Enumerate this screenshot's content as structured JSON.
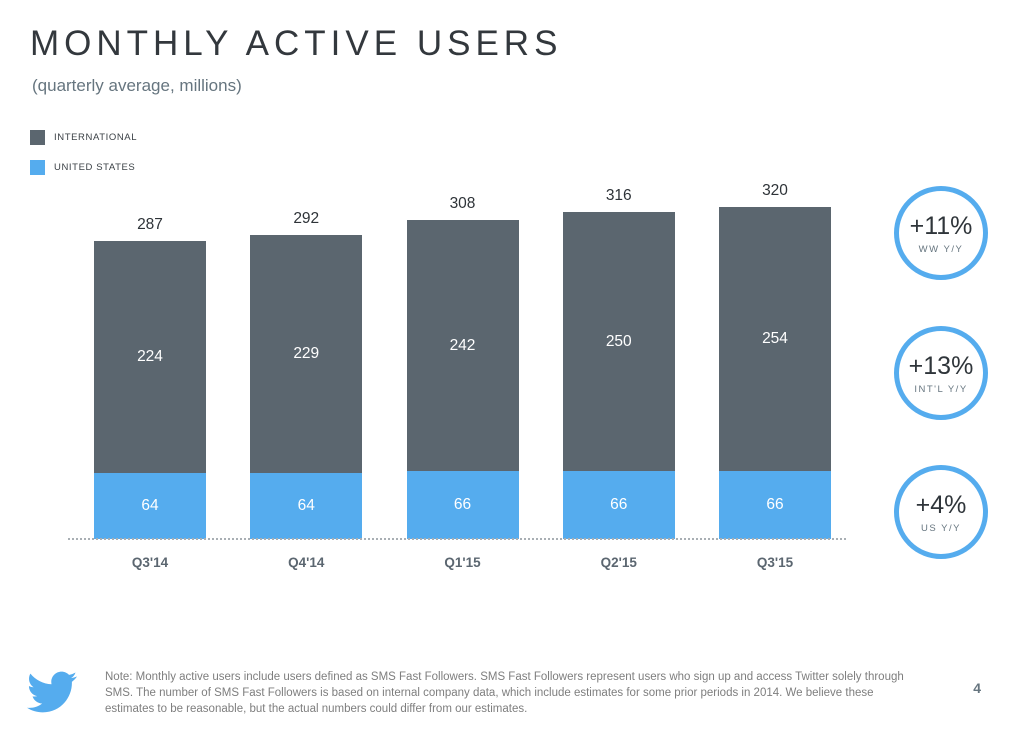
{
  "slide": {
    "title": "MONTHLY ACTIVE USERS",
    "subtitle": "(quarterly average, millions)",
    "page_number": "4",
    "note": "Note: Monthly active users include users defined as SMS Fast Followers. SMS Fast Followers represent users who sign up and access Twitter solely through SMS. The number of SMS Fast Followers is based on internal company data, which include estimates for some prior periods in 2014. We believe these estimates to be reasonable, but the actual numbers could differ from our estimates.",
    "accent_color": "#55acee"
  },
  "legend": [
    {
      "label": "INTERNATIONAL",
      "color": "#5b666f"
    },
    {
      "label": "UNITED STATES",
      "color": "#55acee"
    }
  ],
  "chart_data": {
    "type": "bar",
    "stacked": true,
    "title": "MONTHLY ACTIVE USERS",
    "subtitle": "(quarterly average, millions)",
    "categories": [
      "Q3'14",
      "Q4'14",
      "Q1'15",
      "Q2'15",
      "Q3'15"
    ],
    "series": [
      {
        "name": "UNITED STATES",
        "color": "#55acee",
        "values": [
          64,
          64,
          66,
          66,
          66
        ]
      },
      {
        "name": "INTERNATIONAL",
        "color": "#5b666f",
        "values": [
          224,
          229,
          242,
          250,
          254
        ]
      }
    ],
    "totals": [
      287,
      292,
      308,
      316,
      320
    ],
    "xlabel": "",
    "ylabel": "",
    "ylim": [
      0,
      340
    ],
    "grid": false,
    "legend_position": "top-left"
  },
  "badges": [
    {
      "value": "+11%",
      "label": "WW Y/Y"
    },
    {
      "value": "+13%",
      "label": "INT'L Y/Y"
    },
    {
      "value": "+4%",
      "label": "US Y/Y"
    }
  ]
}
